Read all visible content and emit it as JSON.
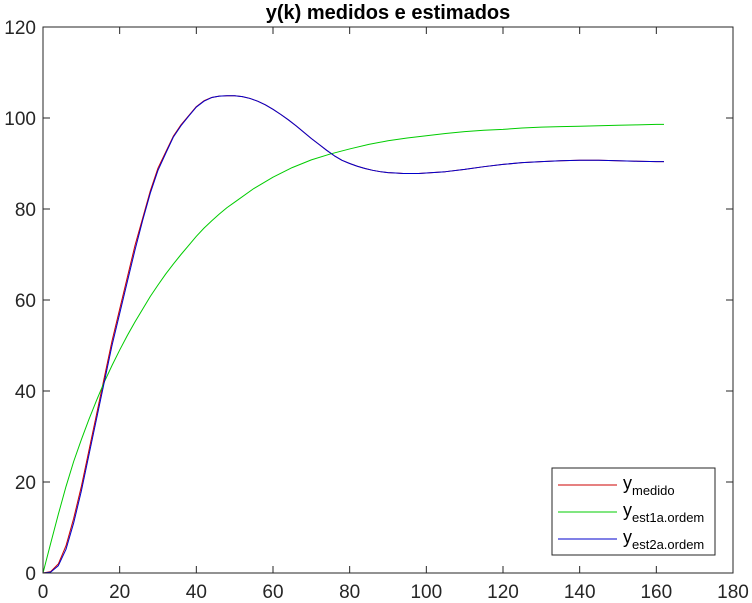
{
  "chart_data": {
    "type": "line",
    "title": "y(k) medidos e estimados",
    "xlabel": "",
    "ylabel": "",
    "xlim": [
      0,
      180
    ],
    "ylim": [
      0,
      120
    ],
    "xticks": [
      0,
      20,
      40,
      60,
      80,
      100,
      120,
      140,
      160,
      180
    ],
    "yticks": [
      0,
      20,
      40,
      60,
      80,
      100,
      120
    ],
    "grid": false,
    "legend_position": "bottom-right",
    "series": [
      {
        "name": "y",
        "subscript": "medido",
        "color": "#cc0000",
        "x": [
          0,
          2,
          4,
          6,
          8,
          10,
          12,
          14,
          16,
          18,
          20,
          22,
          24,
          26,
          28,
          30,
          32,
          34,
          36,
          38,
          40,
          42,
          44,
          46,
          48,
          50,
          52,
          54,
          56,
          58,
          60,
          62,
          64,
          66,
          68,
          70,
          72,
          74,
          76,
          78,
          80,
          82,
          84,
          86,
          88,
          90,
          92,
          94,
          96,
          98,
          100,
          105,
          110,
          115,
          120,
          125,
          130,
          135,
          140,
          145,
          150,
          155,
          160,
          162
        ],
        "y": [
          0,
          0.3,
          2,
          6,
          12,
          19,
          27,
          35,
          43,
          51,
          58,
          65,
          72,
          78,
          84,
          89,
          92.5,
          96,
          98.5,
          100.5,
          102.5,
          103.8,
          104.5,
          104.8,
          104.9,
          104.9,
          104.7,
          104.3,
          103.7,
          102.9,
          101.9,
          100.8,
          99.6,
          98.3,
          96.9,
          95.5,
          94.2,
          92.9,
          91.7,
          90.7,
          90.0,
          89.4,
          88.9,
          88.5,
          88.2,
          88.0,
          87.9,
          87.8,
          87.8,
          87.8,
          87.9,
          88.2,
          88.7,
          89.3,
          89.8,
          90.2,
          90.4,
          90.6,
          90.7,
          90.7,
          90.6,
          90.5,
          90.4,
          90.4
        ]
      },
      {
        "name": "y",
        "subscript": "est1a.ordem",
        "color": "#00cc00",
        "x": [
          0,
          2,
          4,
          6,
          8,
          10,
          12,
          14,
          16,
          18,
          20,
          22,
          24,
          26,
          28,
          30,
          32,
          34,
          36,
          38,
          40,
          42,
          44,
          46,
          48,
          50,
          55,
          60,
          65,
          70,
          75,
          80,
          85,
          90,
          95,
          100,
          105,
          110,
          115,
          120,
          125,
          130,
          135,
          140,
          145,
          150,
          155,
          160,
          162
        ],
        "y": [
          0,
          6.5,
          12.9,
          19,
          24.5,
          29.3,
          33.8,
          38,
          42,
          45.6,
          49,
          52.2,
          55.2,
          58,
          60.8,
          63.3,
          65.7,
          67.9,
          70,
          72,
          74,
          75.8,
          77.4,
          78.9,
          80.3,
          81.5,
          84.5,
          87,
          89.1,
          90.8,
          92.1,
          93.2,
          94.2,
          95,
          95.6,
          96.1,
          96.6,
          97,
          97.3,
          97.5,
          97.8,
          98,
          98.1,
          98.2,
          98.3,
          98.4,
          98.5,
          98.6,
          98.6
        ]
      },
      {
        "name": "y",
        "subscript": "est2a.ordem",
        "color": "#0000cc",
        "x": [
          0,
          2,
          4,
          6,
          8,
          10,
          12,
          14,
          16,
          18,
          20,
          22,
          24,
          26,
          28,
          30,
          32,
          34,
          36,
          38,
          40,
          42,
          44,
          46,
          48,
          50,
          52,
          54,
          56,
          58,
          60,
          62,
          64,
          66,
          68,
          70,
          72,
          74,
          76,
          78,
          80,
          82,
          84,
          86,
          88,
          90,
          92,
          94,
          96,
          98,
          100,
          105,
          110,
          115,
          120,
          125,
          130,
          135,
          140,
          145,
          150,
          155,
          160,
          162
        ],
        "y": [
          0,
          0.2,
          1.6,
          5.2,
          11,
          18,
          26,
          34,
          42,
          50,
          57,
          64,
          71,
          77.5,
          83.5,
          88.5,
          92.2,
          95.8,
          98.3,
          100.4,
          102.4,
          103.7,
          104.5,
          104.8,
          104.9,
          104.9,
          104.7,
          104.3,
          103.7,
          102.9,
          101.9,
          100.8,
          99.6,
          98.3,
          96.9,
          95.5,
          94.2,
          92.9,
          91.7,
          90.7,
          90.0,
          89.4,
          88.9,
          88.5,
          88.2,
          88.0,
          87.9,
          87.8,
          87.8,
          87.8,
          87.9,
          88.2,
          88.7,
          89.3,
          89.8,
          90.2,
          90.4,
          90.6,
          90.7,
          90.7,
          90.6,
          90.5,
          90.4,
          90.4
        ]
      }
    ]
  }
}
